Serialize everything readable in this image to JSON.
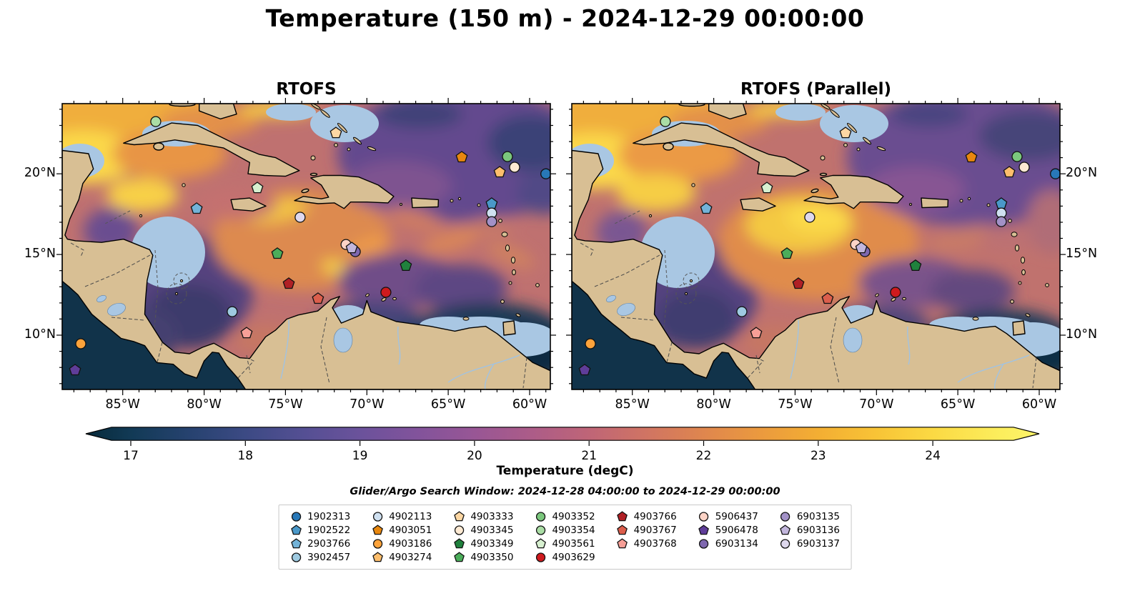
{
  "chart_data": {
    "type": "heatmap",
    "title": "Temperature (150 m) - 2024-12-29 00:00:00",
    "variable": "Temperature",
    "depth_label": "150 m",
    "valid_time": "2024-12-29 00:00:00",
    "subplots": [
      {
        "title": "RTOFS"
      },
      {
        "title": "RTOFS (Parallel)"
      }
    ],
    "x_axis": {
      "tick_labels": [
        "85°W",
        "80°W",
        "75°W",
        "70°W",
        "65°W",
        "60°W"
      ],
      "tick_lons_w": [
        85,
        80,
        75,
        70,
        65,
        60
      ],
      "range_lon_w": [
        88.72,
        58.72
      ]
    },
    "y_axis": {
      "tick_labels": [
        "20°N",
        "15°N",
        "10°N"
      ],
      "tick_lats_n": [
        20,
        15,
        10
      ],
      "range_lat_n": [
        6.64,
        24.35
      ]
    },
    "colorbar": {
      "label": "Temperature (degC)",
      "tick_labels": [
        "17",
        "18",
        "19",
        "20",
        "21",
        "22",
        "23",
        "24"
      ],
      "tick_values": [
        17,
        18,
        19,
        20,
        21,
        22,
        23,
        24
      ],
      "min": 16.6,
      "max": 24.9,
      "extend": "both",
      "gradient_stops": [
        [
          "0",
          "#072a3a"
        ],
        [
          "0.0486",
          "#123a56"
        ],
        [
          "0.108",
          "#26426f"
        ],
        [
          "0.168",
          "#3c4a84"
        ],
        [
          "0.228",
          "#544f93"
        ],
        [
          "0.288",
          "#6b529b"
        ],
        [
          "0.348",
          "#82539b"
        ],
        [
          "0.408",
          "#985695"
        ],
        [
          "0.468",
          "#ac5c88"
        ],
        [
          "0.528",
          "#bf6577"
        ],
        [
          "0.588",
          "#d07463"
        ],
        [
          "0.648",
          "#df864e"
        ],
        [
          "0.708",
          "#eb9a3e"
        ],
        [
          "0.768",
          "#f3ae33"
        ],
        [
          "0.828",
          "#f8c336"
        ],
        [
          "0.887",
          "#fbd943"
        ],
        [
          "0.96",
          "#fcee5d"
        ],
        [
          "1",
          "#fdf46a"
        ]
      ]
    },
    "search_window_label": "Glider/Argo Search Window: 2024-12-28 04:00:00 to 2024-12-29 00:00:00",
    "legend_columns": [
      4,
      4,
      4,
      4,
      3,
      3,
      3
    ],
    "platforms": [
      {
        "id": "1902313",
        "marker": "circle",
        "color": "#2878b8",
        "lon_w": 59.0,
        "lat_n": 20.0
      },
      {
        "id": "1902522",
        "marker": "pentagon",
        "color": "#4a98c9",
        "lon_w": 62.33,
        "lat_n": 18.15
      },
      {
        "id": "2903766",
        "marker": "pentagon",
        "color": "#73b3d8",
        "lon_w": 80.46,
        "lat_n": 17.84
      },
      {
        "id": "3902457",
        "marker": "circle",
        "color": "#9ecae1",
        "lon_w": 78.27,
        "lat_n": 11.46
      },
      {
        "id": "4902113",
        "marker": "circle",
        "color": "#cfe0f0",
        "lon_w": 62.33,
        "lat_n": 17.57
      },
      {
        "id": "4903051",
        "marker": "pentagon",
        "color": "#e8870e",
        "lon_w": 64.17,
        "lat_n": 21.03
      },
      {
        "id": "4903186",
        "marker": "circle",
        "color": "#fda33b",
        "lon_w": 87.58,
        "lat_n": 9.47
      },
      {
        "id": "4903274",
        "marker": "pentagon",
        "color": "#fdbe6c",
        "lon_w": 61.84,
        "lat_n": 20.1
      },
      {
        "id": "4903333",
        "marker": "pentagon",
        "color": "#fdd7a3",
        "lon_w": 71.9,
        "lat_n": 22.53
      },
      {
        "id": "4903345",
        "marker": "circle",
        "color": "#feead3",
        "lon_w": 60.92,
        "lat_n": 20.41
      },
      {
        "id": "4903349",
        "marker": "pentagon",
        "color": "#20813d",
        "lon_w": 67.6,
        "lat_n": 14.3
      },
      {
        "id": "4903350",
        "marker": "pentagon",
        "color": "#4bad5a",
        "lon_w": 75.5,
        "lat_n": 15.05
      },
      {
        "id": "4903352",
        "marker": "circle",
        "color": "#7bc77d",
        "lon_w": 61.36,
        "lat_n": 21.07
      },
      {
        "id": "4903354",
        "marker": "circle",
        "color": "#aadda5",
        "lon_w": 82.97,
        "lat_n": 23.24
      },
      {
        "id": "4903561",
        "marker": "pentagon",
        "color": "#d7f0d0",
        "lon_w": 76.73,
        "lat_n": 19.12
      },
      {
        "id": "4903629",
        "marker": "circle",
        "color": "#cf1a1e",
        "lon_w": 68.83,
        "lat_n": 12.66
      },
      {
        "id": "4903766",
        "marker": "pentagon",
        "color": "#b02025",
        "lon_w": 74.8,
        "lat_n": 13.19
      },
      {
        "id": "4903767",
        "marker": "pentagon",
        "color": "#dc5e4c",
        "lon_w": 73.0,
        "lat_n": 12.26
      },
      {
        "id": "4903768",
        "marker": "pentagon",
        "color": "#f79f97",
        "lon_w": 77.39,
        "lat_n": 10.13
      },
      {
        "id": "5906437",
        "marker": "circle",
        "color": "#fcd3c6",
        "lon_w": 71.28,
        "lat_n": 15.62
      },
      {
        "id": "5906478",
        "marker": "pentagon",
        "color": "#5f3d99",
        "lon_w": 87.93,
        "lat_n": 7.83
      },
      {
        "id": "6903134",
        "marker": "circle",
        "color": "#7f68af",
        "lon_w": 70.71,
        "lat_n": 15.18
      },
      {
        "id": "6903135",
        "marker": "circle",
        "color": "#a291c7",
        "lon_w": 62.33,
        "lat_n": 17.04
      },
      {
        "id": "6903136",
        "marker": "pentagon",
        "color": "#c2b6dc",
        "lon_w": 70.93,
        "lat_n": 15.4
      },
      {
        "id": "6903137",
        "marker": "circle",
        "color": "#ded8ed",
        "lon_w": 74.1,
        "lat_n": 17.31
      }
    ]
  }
}
